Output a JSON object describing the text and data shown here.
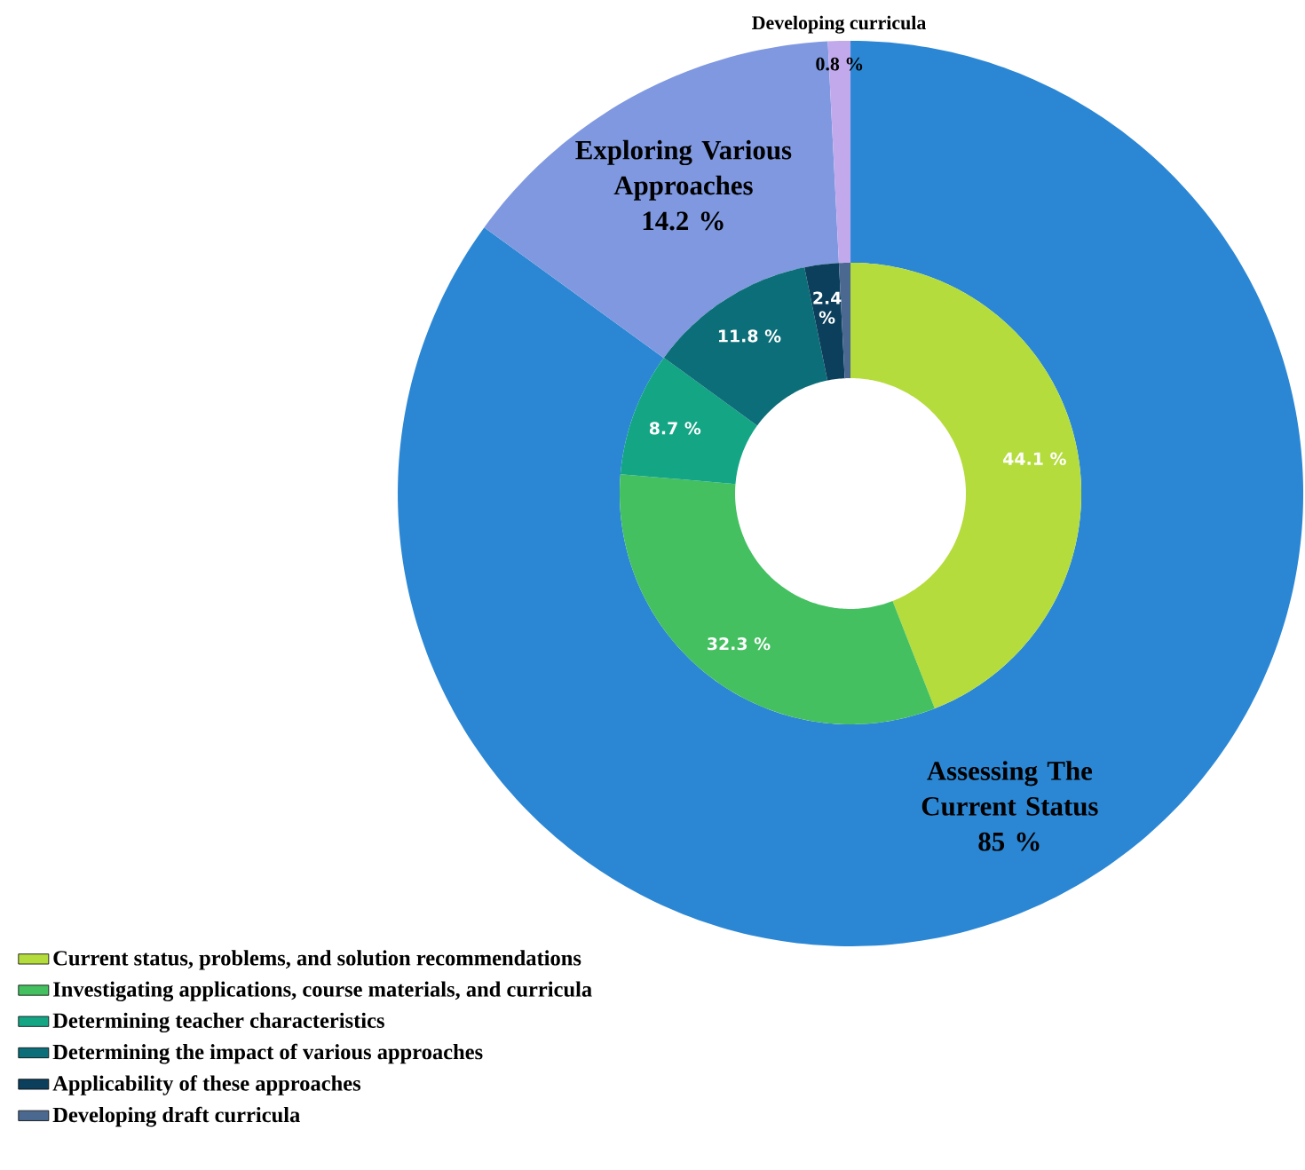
{
  "chart_data": [
    {
      "type": "donut",
      "categories": [
        "Assessing The Current Status",
        "Exploring Various Approaches",
        "Developing curricula"
      ],
      "values": [
        85,
        14.2,
        0.8
      ],
      "colors": [
        "#2b87d4",
        "#7f98e0",
        "#c2a9ec"
      ],
      "value_labels": [
        "85 %",
        "14.2 %",
        "0.8 %"
      ]
    },
    {
      "type": "donut",
      "categories": [
        "Current status, problems, and solution recommendations",
        "Investigating applications, course materials, and curricula",
        "Determining teacher characteristics",
        "Determining the impact of various approaches",
        "Applicability of these approaches",
        "Developing draft curricula"
      ],
      "values": [
        44.1,
        32.3,
        8.7,
        11.8,
        2.4,
        0.8
      ],
      "colors": [
        "#b4dc3c",
        "#44c060",
        "#14a585",
        "#0c6e78",
        "#0b3f5c",
        "#4a6890"
      ],
      "value_labels": [
        "44.1 %",
        "32.3 %",
        "8.7 %",
        "11.8 %",
        "2.4 %",
        null
      ],
      "legend": "bottom left"
    }
  ]
}
